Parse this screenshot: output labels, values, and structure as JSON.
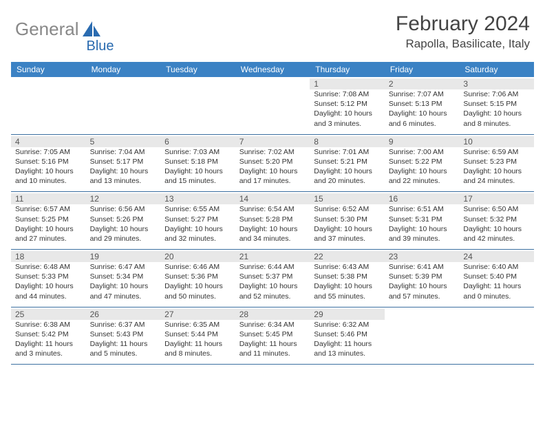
{
  "logo": {
    "gray": "General",
    "blue": "Blue",
    "shape_color": "#2a6bb0"
  },
  "header": {
    "month_title": "February 2024",
    "location": "Rapolla, Basilicate, Italy",
    "title_color": "#444444",
    "title_fontsize": 30,
    "location_fontsize": 17
  },
  "colors": {
    "header_bg": "#3b82c4",
    "header_fg": "#ffffff",
    "daynum_bg": "#e8e8e8",
    "week_border": "#3b6fa0",
    "text": "#333333"
  },
  "day_headers": [
    "Sunday",
    "Monday",
    "Tuesday",
    "Wednesday",
    "Thursday",
    "Friday",
    "Saturday"
  ],
  "weeks": [
    [
      {
        "day": ""
      },
      {
        "day": ""
      },
      {
        "day": ""
      },
      {
        "day": ""
      },
      {
        "day": "1",
        "sunrise": "Sunrise: 7:08 AM",
        "sunset": "Sunset: 5:12 PM",
        "daylight1": "Daylight: 10 hours",
        "daylight2": "and 3 minutes."
      },
      {
        "day": "2",
        "sunrise": "Sunrise: 7:07 AM",
        "sunset": "Sunset: 5:13 PM",
        "daylight1": "Daylight: 10 hours",
        "daylight2": "and 6 minutes."
      },
      {
        "day": "3",
        "sunrise": "Sunrise: 7:06 AM",
        "sunset": "Sunset: 5:15 PM",
        "daylight1": "Daylight: 10 hours",
        "daylight2": "and 8 minutes."
      }
    ],
    [
      {
        "day": "4",
        "sunrise": "Sunrise: 7:05 AM",
        "sunset": "Sunset: 5:16 PM",
        "daylight1": "Daylight: 10 hours",
        "daylight2": "and 10 minutes."
      },
      {
        "day": "5",
        "sunrise": "Sunrise: 7:04 AM",
        "sunset": "Sunset: 5:17 PM",
        "daylight1": "Daylight: 10 hours",
        "daylight2": "and 13 minutes."
      },
      {
        "day": "6",
        "sunrise": "Sunrise: 7:03 AM",
        "sunset": "Sunset: 5:18 PM",
        "daylight1": "Daylight: 10 hours",
        "daylight2": "and 15 minutes."
      },
      {
        "day": "7",
        "sunrise": "Sunrise: 7:02 AM",
        "sunset": "Sunset: 5:20 PM",
        "daylight1": "Daylight: 10 hours",
        "daylight2": "and 17 minutes."
      },
      {
        "day": "8",
        "sunrise": "Sunrise: 7:01 AM",
        "sunset": "Sunset: 5:21 PM",
        "daylight1": "Daylight: 10 hours",
        "daylight2": "and 20 minutes."
      },
      {
        "day": "9",
        "sunrise": "Sunrise: 7:00 AM",
        "sunset": "Sunset: 5:22 PM",
        "daylight1": "Daylight: 10 hours",
        "daylight2": "and 22 minutes."
      },
      {
        "day": "10",
        "sunrise": "Sunrise: 6:59 AM",
        "sunset": "Sunset: 5:23 PM",
        "daylight1": "Daylight: 10 hours",
        "daylight2": "and 24 minutes."
      }
    ],
    [
      {
        "day": "11",
        "sunrise": "Sunrise: 6:57 AM",
        "sunset": "Sunset: 5:25 PM",
        "daylight1": "Daylight: 10 hours",
        "daylight2": "and 27 minutes."
      },
      {
        "day": "12",
        "sunrise": "Sunrise: 6:56 AM",
        "sunset": "Sunset: 5:26 PM",
        "daylight1": "Daylight: 10 hours",
        "daylight2": "and 29 minutes."
      },
      {
        "day": "13",
        "sunrise": "Sunrise: 6:55 AM",
        "sunset": "Sunset: 5:27 PM",
        "daylight1": "Daylight: 10 hours",
        "daylight2": "and 32 minutes."
      },
      {
        "day": "14",
        "sunrise": "Sunrise: 6:54 AM",
        "sunset": "Sunset: 5:28 PM",
        "daylight1": "Daylight: 10 hours",
        "daylight2": "and 34 minutes."
      },
      {
        "day": "15",
        "sunrise": "Sunrise: 6:52 AM",
        "sunset": "Sunset: 5:30 PM",
        "daylight1": "Daylight: 10 hours",
        "daylight2": "and 37 minutes."
      },
      {
        "day": "16",
        "sunrise": "Sunrise: 6:51 AM",
        "sunset": "Sunset: 5:31 PM",
        "daylight1": "Daylight: 10 hours",
        "daylight2": "and 39 minutes."
      },
      {
        "day": "17",
        "sunrise": "Sunrise: 6:50 AM",
        "sunset": "Sunset: 5:32 PM",
        "daylight1": "Daylight: 10 hours",
        "daylight2": "and 42 minutes."
      }
    ],
    [
      {
        "day": "18",
        "sunrise": "Sunrise: 6:48 AM",
        "sunset": "Sunset: 5:33 PM",
        "daylight1": "Daylight: 10 hours",
        "daylight2": "and 44 minutes."
      },
      {
        "day": "19",
        "sunrise": "Sunrise: 6:47 AM",
        "sunset": "Sunset: 5:34 PM",
        "daylight1": "Daylight: 10 hours",
        "daylight2": "and 47 minutes."
      },
      {
        "day": "20",
        "sunrise": "Sunrise: 6:46 AM",
        "sunset": "Sunset: 5:36 PM",
        "daylight1": "Daylight: 10 hours",
        "daylight2": "and 50 minutes."
      },
      {
        "day": "21",
        "sunrise": "Sunrise: 6:44 AM",
        "sunset": "Sunset: 5:37 PM",
        "daylight1": "Daylight: 10 hours",
        "daylight2": "and 52 minutes."
      },
      {
        "day": "22",
        "sunrise": "Sunrise: 6:43 AM",
        "sunset": "Sunset: 5:38 PM",
        "daylight1": "Daylight: 10 hours",
        "daylight2": "and 55 minutes."
      },
      {
        "day": "23",
        "sunrise": "Sunrise: 6:41 AM",
        "sunset": "Sunset: 5:39 PM",
        "daylight1": "Daylight: 10 hours",
        "daylight2": "and 57 minutes."
      },
      {
        "day": "24",
        "sunrise": "Sunrise: 6:40 AM",
        "sunset": "Sunset: 5:40 PM",
        "daylight1": "Daylight: 11 hours",
        "daylight2": "and 0 minutes."
      }
    ],
    [
      {
        "day": "25",
        "sunrise": "Sunrise: 6:38 AM",
        "sunset": "Sunset: 5:42 PM",
        "daylight1": "Daylight: 11 hours",
        "daylight2": "and 3 minutes."
      },
      {
        "day": "26",
        "sunrise": "Sunrise: 6:37 AM",
        "sunset": "Sunset: 5:43 PM",
        "daylight1": "Daylight: 11 hours",
        "daylight2": "and 5 minutes."
      },
      {
        "day": "27",
        "sunrise": "Sunrise: 6:35 AM",
        "sunset": "Sunset: 5:44 PM",
        "daylight1": "Daylight: 11 hours",
        "daylight2": "and 8 minutes."
      },
      {
        "day": "28",
        "sunrise": "Sunrise: 6:34 AM",
        "sunset": "Sunset: 5:45 PM",
        "daylight1": "Daylight: 11 hours",
        "daylight2": "and 11 minutes."
      },
      {
        "day": "29",
        "sunrise": "Sunrise: 6:32 AM",
        "sunset": "Sunset: 5:46 PM",
        "daylight1": "Daylight: 11 hours",
        "daylight2": "and 13 minutes."
      },
      {
        "day": ""
      },
      {
        "day": ""
      }
    ]
  ]
}
